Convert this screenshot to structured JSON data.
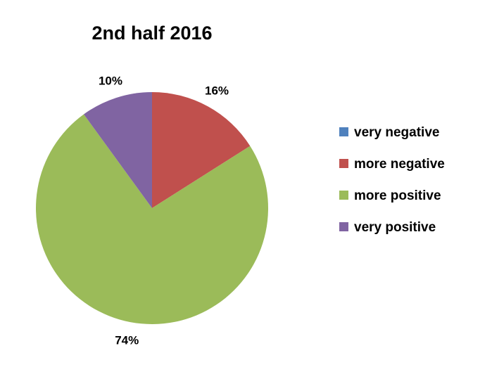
{
  "chart_data": {
    "type": "pie",
    "title": "2nd half 2016",
    "slices": [
      {
        "label": "very negative",
        "value": 0,
        "data_label": "",
        "color": "#4F81BD"
      },
      {
        "label": "more negative",
        "value": 16,
        "data_label": "16%",
        "color": "#C0504D"
      },
      {
        "label": "more positive",
        "value": 74,
        "data_label": "74%",
        "color": "#9BBB59"
      },
      {
        "label": "very positive",
        "value": 10,
        "data_label": "10%",
        "color": "#8064A2"
      }
    ],
    "legend_position": "right"
  }
}
